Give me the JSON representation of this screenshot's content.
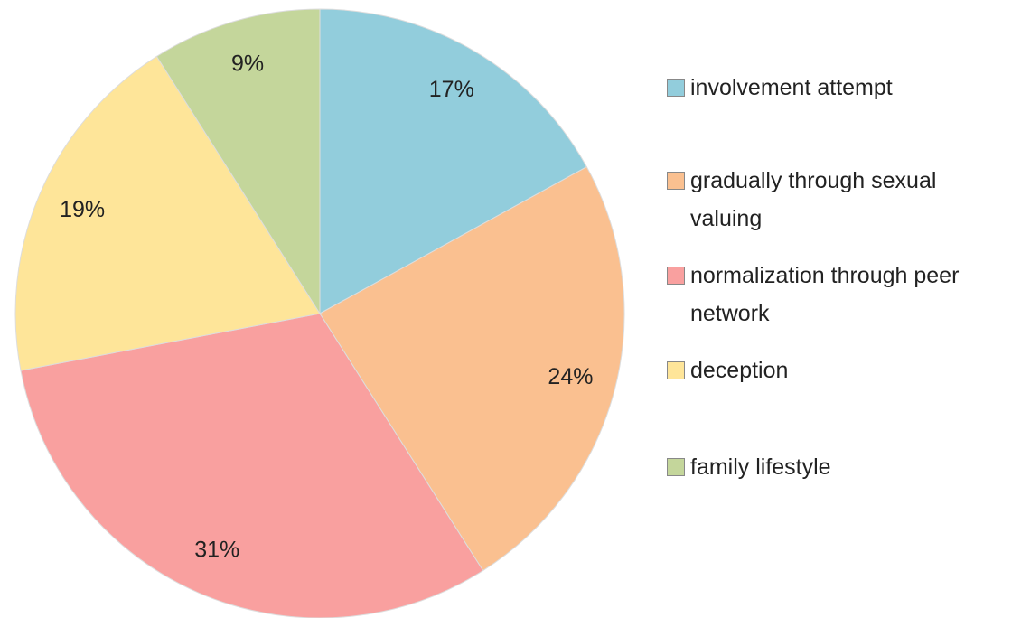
{
  "chart_data": {
    "type": "pie",
    "categories": [
      "involvement attempt",
      "gradually through sexual valuing",
      "normalization through peer network",
      "deception",
      "family lifestyle"
    ],
    "values": [
      17,
      24,
      31,
      19,
      9
    ],
    "value_labels": [
      "17%",
      "24%",
      "31%",
      "19%",
      "9%"
    ],
    "colors": [
      "#92cddc",
      "#fac090",
      "#f9a09f",
      "#fee599",
      "#c4d69b"
    ],
    "legend": "right"
  }
}
